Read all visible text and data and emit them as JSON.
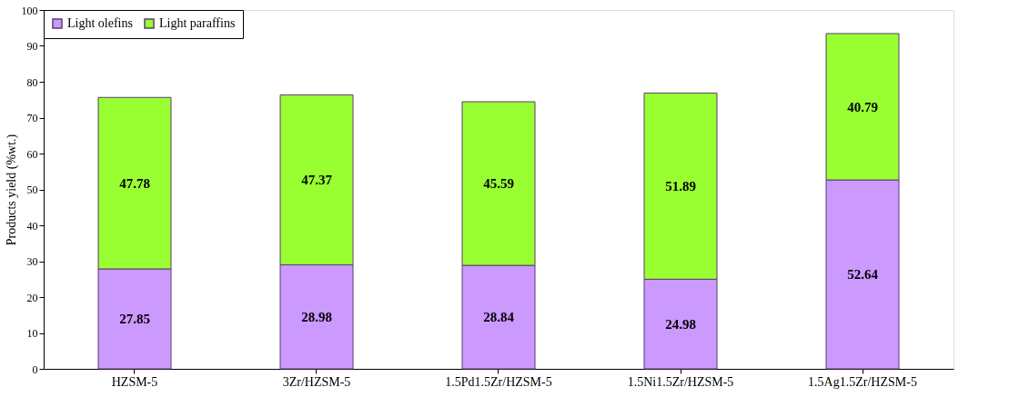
{
  "chart_data": {
    "type": "bar",
    "stacked": true,
    "ylabel": "Products yield (%wt.)",
    "categories": [
      "HZSM-5",
      "3Zr/HZSM-5",
      "1.5Pd1.5Zr/HZSM-5",
      "1.5Ni1.5Zr/HZSM-5",
      "1.5Ag1.5Zr/HZSM-5"
    ],
    "series": [
      {
        "name": "Light olefins",
        "color": "#cc99ff",
        "values": [
          27.85,
          28.98,
          28.84,
          24.98,
          52.64
        ]
      },
      {
        "name": "Light paraffins",
        "color": "#99ff33",
        "values": [
          47.78,
          47.37,
          45.59,
          51.89,
          40.79
        ]
      }
    ],
    "ylim": [
      0,
      100
    ],
    "yticks": [
      0,
      10,
      20,
      30,
      40,
      50,
      60,
      70,
      80,
      90,
      100
    ],
    "grid": false,
    "legend": "top left",
    "data_labels": true
  }
}
